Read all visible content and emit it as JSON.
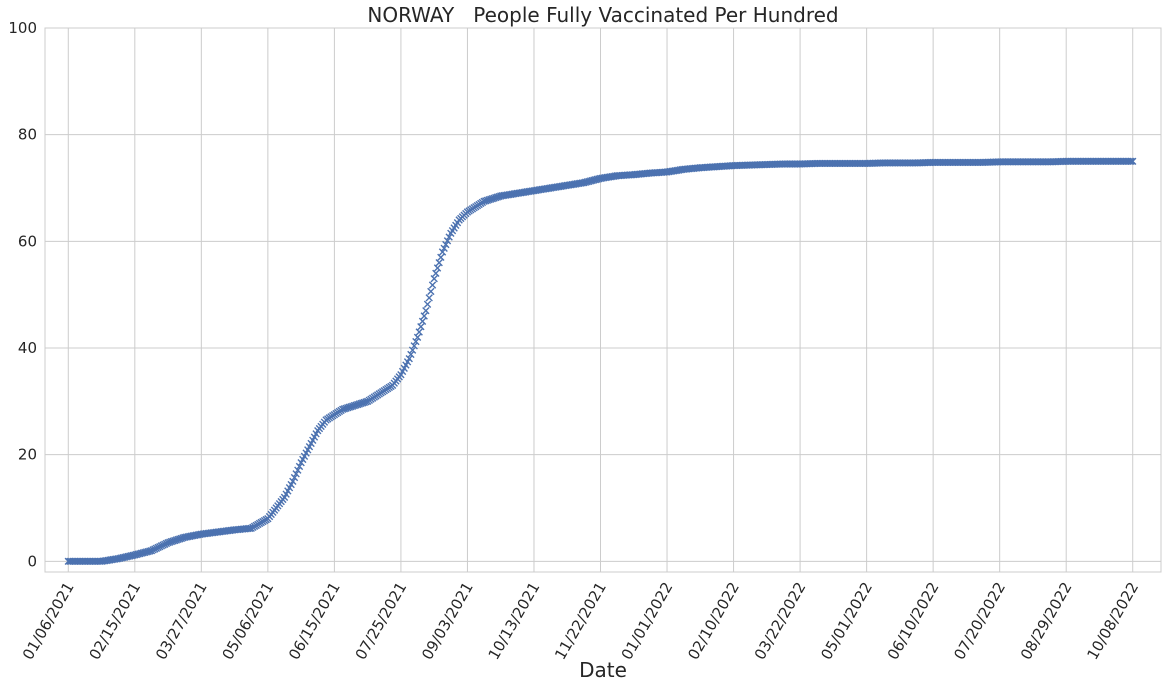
{
  "chart_data": {
    "type": "scatter",
    "title": "NORWAY   People Fully Vaccinated Per Hundred",
    "xlabel": "Date",
    "ylabel": "",
    "marker": "x",
    "ylim": [
      -2,
      100
    ],
    "xlim": [
      "2020-12-23",
      "2022-10-25"
    ],
    "grid": true,
    "legend": "none",
    "colors": {
      "marker": "#4c72b0",
      "grid": "#cccccc",
      "frame": "#cccccc",
      "text": "#262626"
    },
    "x_ticks": [
      "01/06/2021",
      "02/15/2021",
      "03/27/2021",
      "05/06/2021",
      "06/15/2021",
      "07/25/2021",
      "09/03/2021",
      "10/13/2021",
      "11/22/2021",
      "01/01/2022",
      "02/10/2022",
      "03/22/2022",
      "05/01/2022",
      "06/10/2022",
      "07/20/2022",
      "08/29/2022",
      "10/08/2022"
    ],
    "y_ticks": [
      "0",
      "20",
      "40",
      "60",
      "80",
      "100"
    ],
    "series": [
      {
        "x": [
          "2021-01-06",
          "2021-01-16",
          "2021-01-26",
          "2021-02-05",
          "2021-02-15",
          "2021-02-25",
          "2021-03-07",
          "2021-03-17",
          "2021-03-27",
          "2021-04-06",
          "2021-04-16",
          "2021-04-26",
          "2021-05-06",
          "2021-05-11",
          "2021-05-16",
          "2021-05-21",
          "2021-05-26",
          "2021-05-31",
          "2021-06-05",
          "2021-06-10",
          "2021-06-15",
          "2021-06-20",
          "2021-06-25",
          "2021-06-30",
          "2021-07-05",
          "2021-07-10",
          "2021-07-15",
          "2021-07-20",
          "2021-07-25",
          "2021-07-30",
          "2021-08-04",
          "2021-08-09",
          "2021-08-14",
          "2021-08-19",
          "2021-08-24",
          "2021-08-29",
          "2021-09-03",
          "2021-09-08",
          "2021-09-13",
          "2021-09-18",
          "2021-09-23",
          "2021-10-03",
          "2021-10-13",
          "2021-10-23",
          "2021-11-02",
          "2021-11-12",
          "2021-11-22",
          "2021-12-02",
          "2021-12-12",
          "2021-12-22",
          "2022-01-01",
          "2022-01-11",
          "2022-01-21",
          "2022-01-31",
          "2022-02-10",
          "2022-02-20",
          "2022-03-02",
          "2022-03-12",
          "2022-03-22",
          "2022-04-01",
          "2022-04-11",
          "2022-04-21",
          "2022-05-01",
          "2022-05-11",
          "2022-05-21",
          "2022-05-31",
          "2022-06-10",
          "2022-06-20",
          "2022-06-30",
          "2022-07-10",
          "2022-07-20",
          "2022-07-30",
          "2022-08-09",
          "2022-08-19",
          "2022-08-29",
          "2022-09-08",
          "2022-09-18",
          "2022-09-28",
          "2022-10-08"
        ],
        "values": [
          0.0,
          0.0,
          0.0,
          0.5,
          1.2,
          2.0,
          3.5,
          4.5,
          5.1,
          5.5,
          5.9,
          6.2,
          8.0,
          10.0,
          12.0,
          15.0,
          18.5,
          21.5,
          24.5,
          26.5,
          27.5,
          28.5,
          29.0,
          29.5,
          30.0,
          31.0,
          32.0,
          33.0,
          35.0,
          38.0,
          42.0,
          47.0,
          53.0,
          58.0,
          61.5,
          64.0,
          65.5,
          66.5,
          67.5,
          68.0,
          68.5,
          69.0,
          69.5,
          70.0,
          70.5,
          71.0,
          71.8,
          72.3,
          72.5,
          72.8,
          73.0,
          73.5,
          73.8,
          74.0,
          74.2,
          74.3,
          74.4,
          74.5,
          74.5,
          74.6,
          74.6,
          74.6,
          74.6,
          74.7,
          74.7,
          74.7,
          74.8,
          74.8,
          74.8,
          74.8,
          74.9,
          74.9,
          74.9,
          74.9,
          75.0,
          75.0,
          75.0,
          75.0,
          75.0
        ]
      }
    ]
  }
}
